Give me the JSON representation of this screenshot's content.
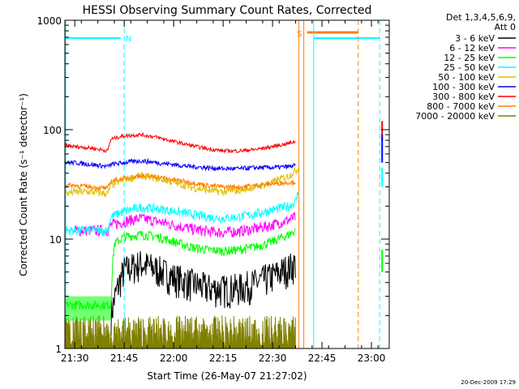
{
  "chart_data": {
    "type": "line",
    "title": "HESSI Observing Summary Count Rates, Corrected",
    "xlabel": "Start Time (26-May-07 21:27:02)",
    "ylabel": "Corrected Count Rate (s⁻¹ detector⁻¹)",
    "yscale": "log",
    "ylim": [
      1,
      1000
    ],
    "xlim_minutes": [
      21.45,
      23.09
    ],
    "x_ticks": [
      "21:30",
      "21:45",
      "22:00",
      "22:15",
      "22:30",
      "22:45",
      "23:00"
    ],
    "y_ticks": [
      "1",
      "10",
      "100",
      "1000"
    ],
    "grid": false,
    "legend_position": "right",
    "legend_header": [
      "Det 1,3,4,5,6,9,",
      "Att 0"
    ],
    "series": [
      {
        "name": "3 - 6 keV",
        "color": "#000000",
        "x": [
          "21:41",
          "21:45",
          "21:50",
          "21:55",
          "22:00",
          "22:05",
          "22:10",
          "22:15",
          "22:20",
          "22:25",
          "22:30",
          "22:35",
          "22:37"
        ],
        "y": [
          2.0,
          5.2,
          6.0,
          5.3,
          4.5,
          4.0,
          3.6,
          3.5,
          3.6,
          4.0,
          4.6,
          5.5,
          6.0
        ]
      },
      {
        "name": "6 - 12 keV",
        "color": "#ff00ff",
        "x": [
          "21:30",
          "21:40",
          "21:41",
          "21:45",
          "21:50",
          "21:55",
          "22:00",
          "22:05",
          "22:10",
          "22:15",
          "22:20",
          "22:25",
          "22:30",
          "22:35",
          "22:37"
        ],
        "y": [
          12,
          12,
          13.5,
          14.5,
          15.5,
          14.5,
          13.5,
          12.5,
          11.8,
          11.5,
          11.8,
          12.5,
          13.5,
          15,
          16
        ]
      },
      {
        "name": "12 - 25 keV",
        "color": "#00ff00",
        "x": [
          "21:27",
          "21:41",
          "21:42",
          "21:45",
          "21:50",
          "21:55",
          "22:00",
          "22:05",
          "22:10",
          "22:15",
          "22:20",
          "22:25",
          "22:30",
          "22:35",
          "22:37"
        ],
        "y": [
          2.5,
          2.5,
          9,
          10.5,
          11,
          10.5,
          9.5,
          8.5,
          8,
          7.8,
          8,
          8.5,
          9.5,
          11,
          12
        ]
      },
      {
        "name": "25 - 50 keV",
        "color": "#00ffff",
        "x": [
          "21:27",
          "21:30",
          "21:35",
          "21:40",
          "21:41",
          "21:45",
          "21:50",
          "21:55",
          "22:00",
          "22:05",
          "22:10",
          "22:15",
          "22:20",
          "22:25",
          "22:30",
          "22:35",
          "22:37",
          "22:38"
        ],
        "y": [
          12,
          12,
          12,
          12,
          16,
          18,
          19.5,
          19,
          18,
          17,
          16,
          15.5,
          16,
          17,
          18.5,
          20,
          22,
          28
        ]
      },
      {
        "name": "50 - 100 keV",
        "color": "#e0c000",
        "x": [
          "21:27",
          "21:30",
          "21:35",
          "21:40",
          "21:41",
          "21:45",
          "21:50",
          "21:55",
          "22:00",
          "22:05",
          "22:10",
          "22:15",
          "22:20",
          "22:25",
          "22:30",
          "22:35",
          "22:37",
          "22:38"
        ],
        "y": [
          26,
          27,
          27,
          26,
          31,
          35,
          38,
          36,
          33,
          30,
          28,
          27,
          28,
          30,
          33,
          38,
          42,
          45
        ]
      },
      {
        "name": "100 - 300 keV",
        "color": "#0000ff",
        "x": [
          "21:27",
          "21:30",
          "21:35",
          "21:40",
          "21:41",
          "21:45",
          "21:50",
          "21:55",
          "22:00",
          "22:05",
          "22:10",
          "22:15",
          "22:20",
          "22:25",
          "22:30",
          "22:35",
          "22:37"
        ],
        "y": [
          50,
          50,
          48,
          46,
          48,
          50,
          52,
          50,
          48,
          46,
          45,
          44,
          44,
          45,
          45,
          46,
          47
        ]
      },
      {
        "name": "300 - 800 keV",
        "color": "#ff0000",
        "x": [
          "21:27",
          "21:30",
          "21:35",
          "21:40",
          "21:41",
          "21:45",
          "21:50",
          "21:55",
          "22:00",
          "22:05",
          "22:10",
          "22:15",
          "22:20",
          "22:25",
          "22:30",
          "22:35",
          "22:37"
        ],
        "y": [
          72,
          70,
          68,
          64,
          82,
          88,
          90,
          85,
          78,
          72,
          67,
          64,
          64,
          66,
          70,
          75,
          78
        ]
      },
      {
        "name": "800 - 7000 keV",
        "color": "#ff8000",
        "x": [
          "21:27",
          "21:30",
          "21:35",
          "21:40",
          "21:41",
          "21:45",
          "21:50",
          "21:55",
          "22:00",
          "22:05",
          "22:10",
          "22:15",
          "22:20",
          "22:25",
          "22:30",
          "22:35",
          "22:37"
        ],
        "y": [
          31,
          31,
          30,
          29,
          34,
          36,
          38,
          37,
          35,
          33,
          31,
          30,
          30,
          31,
          32,
          33,
          33
        ]
      },
      {
        "name": "7000 - 20000 keV",
        "color": "#808000",
        "x": [
          "21:27",
          "22:37"
        ],
        "y": [
          1.6,
          1.6
        ]
      }
    ],
    "annotations": [
      {
        "text": "N",
        "color": "#00ffff"
      },
      {
        "text": "S",
        "color": "#ff8000"
      }
    ]
  },
  "footer": {
    "date": "20-Dec-2009 17:29"
  }
}
